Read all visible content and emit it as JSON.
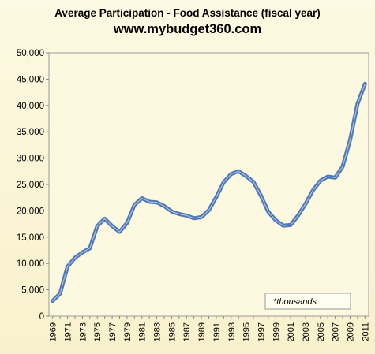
{
  "chart_data": {
    "type": "line",
    "title": "Average Participation - Food Assistance (fiscal year)",
    "subtitle": "www.mybudget360.com",
    "xlabel": "",
    "ylabel": "",
    "ylim": [
      0,
      50000
    ],
    "yticks": [
      0,
      5000,
      10000,
      15000,
      20000,
      25000,
      30000,
      35000,
      40000,
      45000,
      50000
    ],
    "ytick_labels": [
      "0",
      "5,000",
      "10,000",
      "15,000",
      "20,000",
      "25,000",
      "30,000",
      "35,000",
      "40,000",
      "45,000",
      "50,000"
    ],
    "xtick_labels": [
      "1969",
      "1971",
      "1973",
      "1975",
      "1977",
      "1979",
      "1981",
      "1983",
      "1985",
      "1987",
      "1989",
      "1991",
      "1993",
      "1995",
      "1997",
      "1999",
      "2001",
      "2003",
      "2005",
      "2007",
      "2009",
      "2011"
    ],
    "grid": false,
    "annotation": "*thousands",
    "series": [
      {
        "name": "",
        "x": [
          1969,
          1970,
          1971,
          1972,
          1973,
          1974,
          1975,
          1976,
          1977,
          1978,
          1979,
          1980,
          1981,
          1982,
          1983,
          1984,
          1985,
          1986,
          1987,
          1988,
          1989,
          1990,
          1991,
          1992,
          1993,
          1994,
          1995,
          1996,
          1997,
          1998,
          1999,
          2000,
          2001,
          2002,
          2003,
          2004,
          2005,
          2006,
          2007,
          2008,
          2009,
          2010,
          2011
        ],
        "y": [
          2900,
          4300,
          9400,
          11100,
          12100,
          12900,
          17100,
          18500,
          17100,
          16000,
          17700,
          21100,
          22400,
          21700,
          21600,
          20900,
          19900,
          19400,
          19100,
          18600,
          18800,
          20100,
          22600,
          25400,
          27000,
          27500,
          26600,
          25500,
          22900,
          19800,
          18200,
          17200,
          17300,
          19100,
          21300,
          23900,
          25700,
          26500,
          26300,
          28400,
          33500,
          40300,
          44100
        ]
      }
    ],
    "colors": {
      "line_outer": "#4f79b6",
      "line_inner": "#cfdcef",
      "plot_bg": "#fdf9e0",
      "border": "#9a9a9a"
    }
  }
}
